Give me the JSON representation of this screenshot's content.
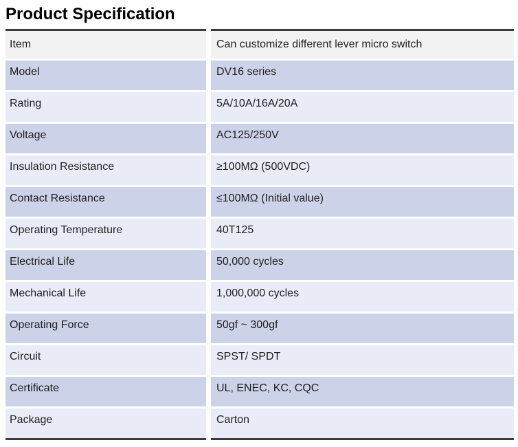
{
  "page": {
    "title": "Product Specification"
  },
  "colors": {
    "header_row_bg": "#f2f2f2",
    "dark_row_bg": "#ccd2e8",
    "light_row_bg": "#e9ebf6",
    "border_line": "#3b3b3b",
    "column_gap": "#ffffff",
    "text": "#1f1f1f",
    "title_text": "#000000"
  },
  "table": {
    "columns": [
      "attribute",
      "value"
    ],
    "rows": [
      {
        "label": "Item",
        "value": "Can customize different lever micro switch",
        "shade": "gray"
      },
      {
        "label": "Model",
        "value": "DV16 series",
        "shade": "dark"
      },
      {
        "label": "Rating",
        "value": "5A/10A/16A/20A",
        "shade": "light"
      },
      {
        "label": "Voltage",
        "value": "AC125/250V",
        "shade": "dark"
      },
      {
        "label": "Insulation Resistance",
        "value": "≥100MΩ (500VDC)",
        "shade": "light"
      },
      {
        "label": "Contact Resistance",
        "value": "≤100MΩ (Initial value)",
        "shade": "dark"
      },
      {
        "label": "Operating Temperature",
        "value": "40T125",
        "shade": "light"
      },
      {
        "label": "Electrical Life",
        "value": "50,000 cycles",
        "shade": "dark"
      },
      {
        "label": "Mechanical Life",
        "value": "1,000,000 cycles",
        "shade": "light"
      },
      {
        "label": "Operating Force",
        "value": "50gf ~ 300gf",
        "shade": "dark"
      },
      {
        "label": "Circuit",
        "value": "SPST/ SPDT",
        "shade": "light"
      },
      {
        "label": "Certificate",
        "value": "UL, ENEC, KC, CQC",
        "shade": "dark"
      },
      {
        "label": "Package",
        "value": "Carton",
        "shade": "light"
      }
    ]
  }
}
